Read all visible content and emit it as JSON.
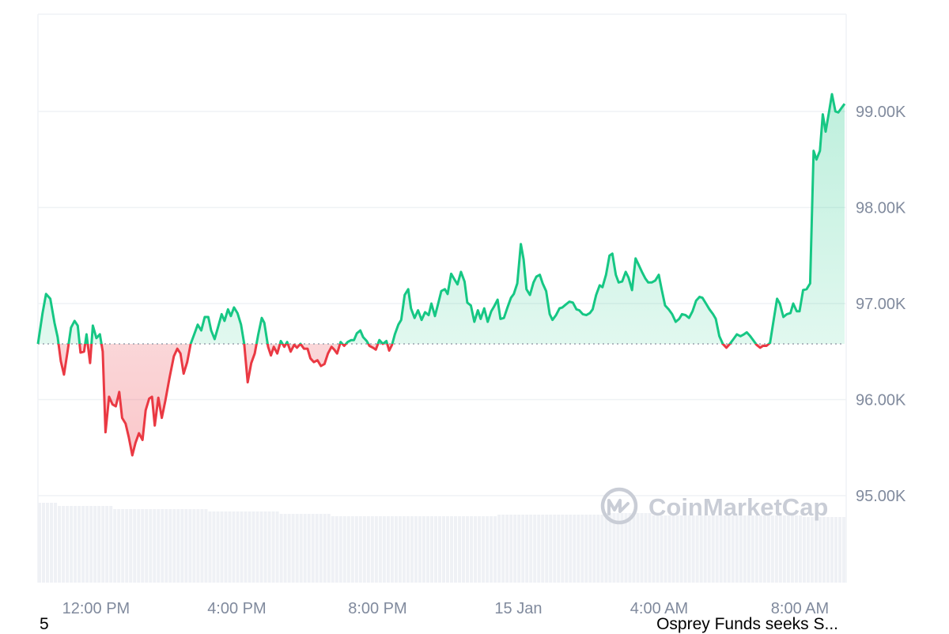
{
  "chart_data": {
    "type": "area",
    "baseline": 96580,
    "ylim": [
      94200,
      100000
    ],
    "yticks": [
      95000,
      96000,
      97000,
      98000,
      99000
    ],
    "ytick_labels": [
      "95.00K",
      "96.00K",
      "97.00K",
      "98.00K",
      "99.00K"
    ],
    "xlim": [
      0,
      24
    ],
    "xticks": [
      1.65,
      5.65,
      9.65,
      13.65,
      17.65,
      21.65
    ],
    "xtick_labels": [
      "12:00 PM",
      "4:00 PM",
      "8:00 PM",
      "15 Jan",
      "4:00 AM",
      "8:00 AM"
    ],
    "grid": true,
    "watermark": "CoinMarketCap",
    "colors": {
      "up": "#16c784",
      "down": "#ea3943",
      "grid": "#eff2f5",
      "volume": "#eff1f5"
    },
    "series": [
      {
        "points": [
          [
            0.0,
            96580
          ],
          [
            0.13,
            96900
          ],
          [
            0.23,
            97100
          ],
          [
            0.35,
            97050
          ],
          [
            0.47,
            96800
          ],
          [
            0.56,
            96650
          ],
          [
            0.65,
            96400
          ],
          [
            0.74,
            96260
          ],
          [
            0.84,
            96500
          ],
          [
            0.94,
            96750
          ],
          [
            1.04,
            96820
          ],
          [
            1.13,
            96770
          ],
          [
            1.21,
            96490
          ],
          [
            1.31,
            96500
          ],
          [
            1.38,
            96680
          ],
          [
            1.48,
            96380
          ],
          [
            1.56,
            96770
          ],
          [
            1.66,
            96640
          ],
          [
            1.76,
            96680
          ],
          [
            1.84,
            96500
          ],
          [
            1.92,
            95660
          ],
          [
            2.02,
            96030
          ],
          [
            2.12,
            95950
          ],
          [
            2.21,
            95930
          ],
          [
            2.31,
            96080
          ],
          [
            2.39,
            95810
          ],
          [
            2.49,
            95750
          ],
          [
            2.58,
            95610
          ],
          [
            2.68,
            95420
          ],
          [
            2.77,
            95550
          ],
          [
            2.87,
            95650
          ],
          [
            2.97,
            95580
          ],
          [
            3.06,
            95890
          ],
          [
            3.16,
            96010
          ],
          [
            3.24,
            96030
          ],
          [
            3.32,
            95730
          ],
          [
            3.42,
            96020
          ],
          [
            3.52,
            95810
          ],
          [
            3.62,
            95990
          ],
          [
            3.74,
            96230
          ],
          [
            3.86,
            96450
          ],
          [
            3.96,
            96530
          ],
          [
            4.05,
            96480
          ],
          [
            4.14,
            96270
          ],
          [
            4.24,
            96390
          ],
          [
            4.34,
            96580
          ],
          [
            4.44,
            96680
          ],
          [
            4.54,
            96780
          ],
          [
            4.64,
            96720
          ],
          [
            4.74,
            96860
          ],
          [
            4.84,
            96860
          ],
          [
            4.92,
            96720
          ],
          [
            5.02,
            96630
          ],
          [
            5.12,
            96760
          ],
          [
            5.22,
            96890
          ],
          [
            5.3,
            96820
          ],
          [
            5.4,
            96940
          ],
          [
            5.48,
            96870
          ],
          [
            5.57,
            96960
          ],
          [
            5.67,
            96900
          ],
          [
            5.77,
            96780
          ],
          [
            5.86,
            96580
          ],
          [
            5.96,
            96180
          ],
          [
            6.06,
            96380
          ],
          [
            6.16,
            96480
          ],
          [
            6.26,
            96680
          ],
          [
            6.36,
            96850
          ],
          [
            6.43,
            96800
          ],
          [
            6.54,
            96550
          ],
          [
            6.62,
            96460
          ],
          [
            6.7,
            96550
          ],
          [
            6.8,
            96480
          ],
          [
            6.9,
            96610
          ],
          [
            7.0,
            96550
          ],
          [
            7.08,
            96600
          ],
          [
            7.18,
            96500
          ],
          [
            7.28,
            96570
          ],
          [
            7.36,
            96540
          ],
          [
            7.46,
            96580
          ],
          [
            7.56,
            96530
          ],
          [
            7.66,
            96530
          ],
          [
            7.74,
            96430
          ],
          [
            7.84,
            96390
          ],
          [
            7.94,
            96410
          ],
          [
            8.04,
            96350
          ],
          [
            8.14,
            96370
          ],
          [
            8.24,
            96480
          ],
          [
            8.34,
            96550
          ],
          [
            8.42,
            96520
          ],
          [
            8.5,
            96480
          ],
          [
            8.6,
            96600
          ],
          [
            8.7,
            96560
          ],
          [
            8.8,
            96600
          ],
          [
            8.9,
            96620
          ],
          [
            8.98,
            96620
          ],
          [
            9.06,
            96690
          ],
          [
            9.16,
            96720
          ],
          [
            9.24,
            96650
          ],
          [
            9.34,
            96610
          ],
          [
            9.42,
            96560
          ],
          [
            9.52,
            96540
          ],
          [
            9.6,
            96520
          ],
          [
            9.7,
            96620
          ],
          [
            9.8,
            96580
          ],
          [
            9.9,
            96610
          ],
          [
            9.98,
            96510
          ],
          [
            10.06,
            96570
          ],
          [
            10.14,
            96680
          ],
          [
            10.24,
            96780
          ],
          [
            10.32,
            96830
          ],
          [
            10.42,
            97090
          ],
          [
            10.52,
            97150
          ],
          [
            10.6,
            96950
          ],
          [
            10.7,
            96850
          ],
          [
            10.8,
            96930
          ],
          [
            10.9,
            96830
          ],
          [
            11.0,
            96910
          ],
          [
            11.1,
            96880
          ],
          [
            11.18,
            97000
          ],
          [
            11.28,
            96870
          ],
          [
            11.38,
            97010
          ],
          [
            11.46,
            97130
          ],
          [
            11.56,
            97150
          ],
          [
            11.64,
            97100
          ],
          [
            11.74,
            97310
          ],
          [
            11.82,
            97260
          ],
          [
            11.92,
            97200
          ],
          [
            12.02,
            97330
          ],
          [
            12.12,
            97230
          ],
          [
            12.2,
            97010
          ],
          [
            12.3,
            96980
          ],
          [
            12.4,
            96810
          ],
          [
            12.5,
            96930
          ],
          [
            12.58,
            96840
          ],
          [
            12.68,
            96950
          ],
          [
            12.78,
            96810
          ],
          [
            12.88,
            96920
          ],
          [
            12.96,
            96970
          ],
          [
            13.06,
            97040
          ],
          [
            13.14,
            96840
          ],
          [
            13.24,
            96850
          ],
          [
            13.34,
            96960
          ],
          [
            13.44,
            97060
          ],
          [
            13.52,
            97100
          ],
          [
            13.62,
            97210
          ],
          [
            13.72,
            97620
          ],
          [
            13.8,
            97460
          ],
          [
            13.88,
            97150
          ],
          [
            13.98,
            97090
          ],
          [
            14.08,
            97220
          ],
          [
            14.16,
            97280
          ],
          [
            14.26,
            97300
          ],
          [
            14.34,
            97210
          ],
          [
            14.44,
            97130
          ],
          [
            14.54,
            96890
          ],
          [
            14.62,
            96830
          ],
          [
            14.72,
            96880
          ],
          [
            14.82,
            96950
          ],
          [
            14.9,
            96960
          ],
          [
            15.0,
            96990
          ],
          [
            15.1,
            97020
          ],
          [
            15.2,
            97010
          ],
          [
            15.3,
            96940
          ],
          [
            15.38,
            96930
          ],
          [
            15.48,
            96890
          ],
          [
            15.58,
            96880
          ],
          [
            15.68,
            96900
          ],
          [
            15.76,
            96940
          ],
          [
            15.86,
            97090
          ],
          [
            15.96,
            97190
          ],
          [
            16.04,
            97170
          ],
          [
            16.14,
            97300
          ],
          [
            16.24,
            97500
          ],
          [
            16.32,
            97520
          ],
          [
            16.42,
            97300
          ],
          [
            16.5,
            97220
          ],
          [
            16.6,
            97230
          ],
          [
            16.7,
            97330
          ],
          [
            16.78,
            97270
          ],
          [
            16.88,
            97140
          ],
          [
            16.98,
            97470
          ],
          [
            17.06,
            97410
          ],
          [
            17.16,
            97330
          ],
          [
            17.26,
            97260
          ],
          [
            17.34,
            97220
          ],
          [
            17.44,
            97220
          ],
          [
            17.54,
            97240
          ],
          [
            17.64,
            97300
          ],
          [
            17.72,
            97150
          ],
          [
            17.82,
            96980
          ],
          [
            17.92,
            96940
          ],
          [
            18.02,
            96890
          ],
          [
            18.12,
            96810
          ],
          [
            18.22,
            96840
          ],
          [
            18.3,
            96890
          ],
          [
            18.4,
            96880
          ],
          [
            18.5,
            96850
          ],
          [
            18.6,
            96920
          ],
          [
            18.7,
            97030
          ],
          [
            18.8,
            97070
          ],
          [
            18.88,
            97060
          ],
          [
            18.98,
            97000
          ],
          [
            19.08,
            96940
          ],
          [
            19.18,
            96890
          ],
          [
            19.26,
            96840
          ],
          [
            19.36,
            96660
          ],
          [
            19.46,
            96580
          ],
          [
            19.56,
            96540
          ],
          [
            19.66,
            96580
          ],
          [
            19.76,
            96630
          ],
          [
            19.86,
            96680
          ],
          [
            19.96,
            96660
          ],
          [
            20.06,
            96680
          ],
          [
            20.14,
            96700
          ],
          [
            20.24,
            96660
          ],
          [
            20.34,
            96610
          ],
          [
            20.42,
            96570
          ],
          [
            20.52,
            96540
          ],
          [
            20.6,
            96560
          ],
          [
            20.7,
            96560
          ],
          [
            20.8,
            96590
          ],
          [
            20.9,
            96820
          ],
          [
            21.0,
            97050
          ],
          [
            21.08,
            97000
          ],
          [
            21.18,
            96860
          ],
          [
            21.28,
            96890
          ],
          [
            21.38,
            96900
          ],
          [
            21.46,
            97000
          ],
          [
            21.56,
            96920
          ],
          [
            21.64,
            96920
          ],
          [
            21.74,
            97140
          ],
          [
            21.84,
            97150
          ],
          [
            21.94,
            97210
          ],
          [
            22.04,
            98590
          ],
          [
            22.12,
            98500
          ],
          [
            22.22,
            98590
          ],
          [
            22.3,
            98970
          ],
          [
            22.38,
            98790
          ],
          [
            22.48,
            99000
          ],
          [
            22.56,
            99180
          ],
          [
            22.66,
            99000
          ],
          [
            22.74,
            98990
          ],
          [
            22.84,
            99040
          ],
          [
            22.92,
            99080
          ]
        ]
      }
    ]
  },
  "footer": {
    "left_text": "5",
    "right_text": "Osprey Funds seeks S..."
  }
}
